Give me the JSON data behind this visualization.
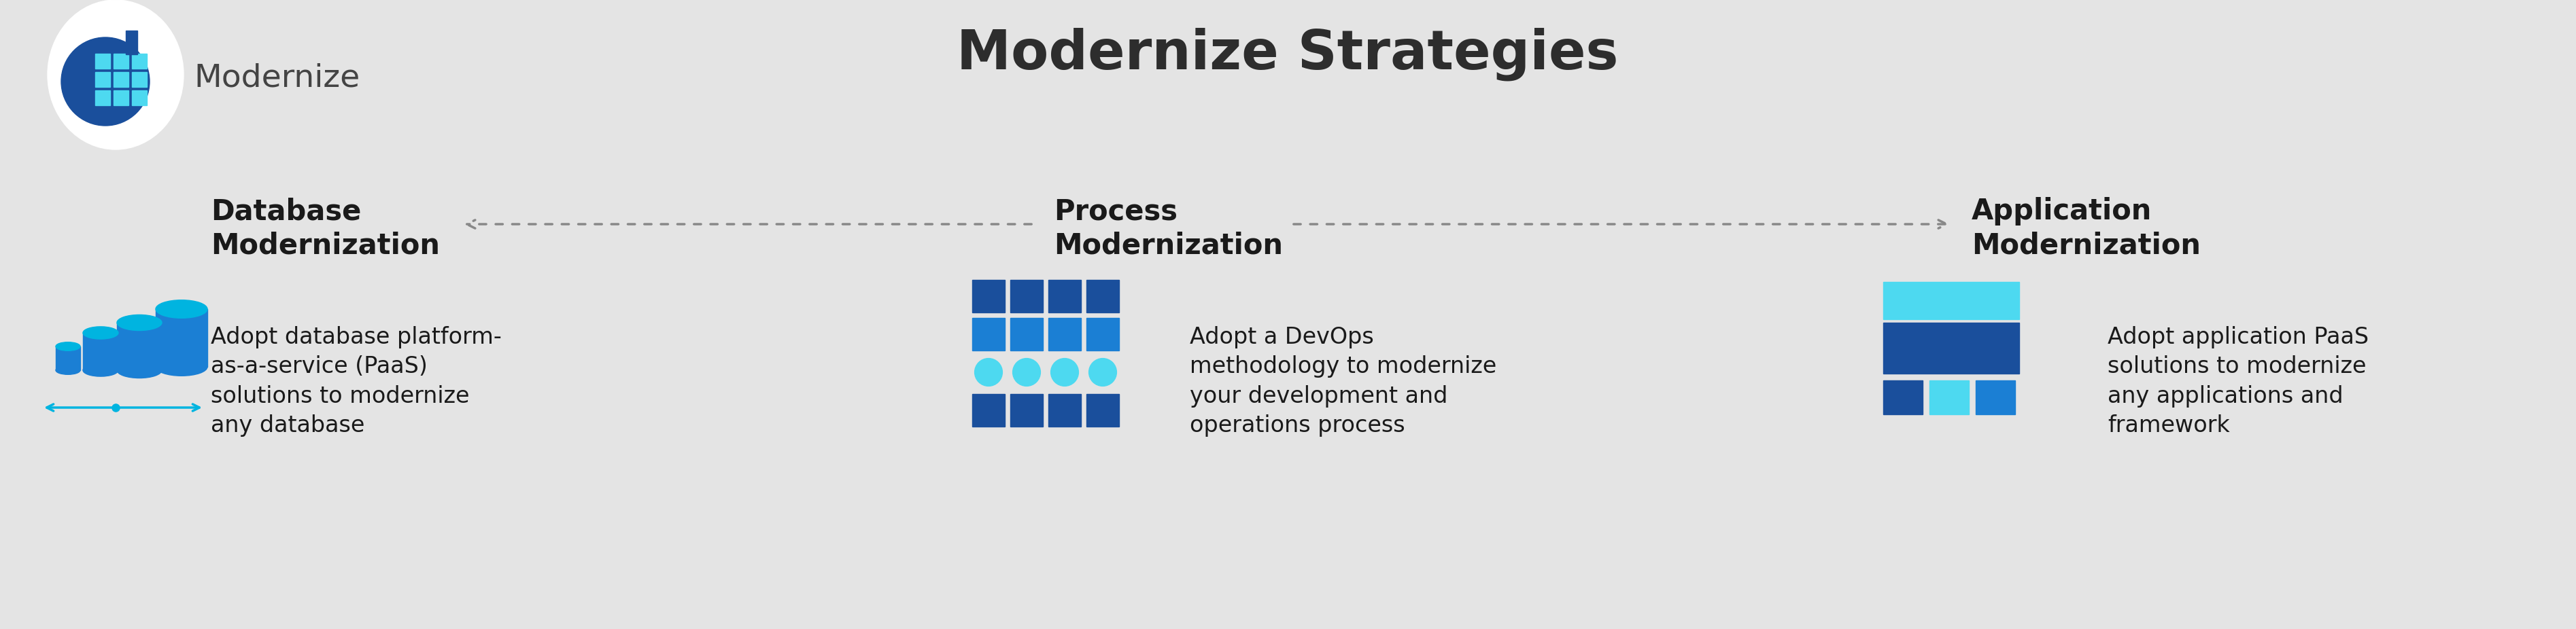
{
  "bg_color": "#e4e4e4",
  "title": "Modernize Strategies",
  "title_fontsize": 58,
  "title_color": "#2d2d2d",
  "title_fontweight": "bold",
  "logo_text": "Modernize",
  "logo_text_fontsize": 34,
  "logo_text_color": "#444444",
  "sections": [
    {
      "id": "database",
      "heading": "Database\nModernization",
      "body": "Adopt database platform-\nas-a-service (PaaS)\nsolutions to modernize\nany database"
    },
    {
      "id": "process",
      "heading": "Process\nModernization",
      "body": "Adopt a DevOps\nmethodology to modernize\nyour development and\noperations process"
    },
    {
      "id": "application",
      "heading": "Application\nModernization",
      "body": "Adopt application PaaS\nsolutions to modernize\nany applications and\nframework"
    }
  ],
  "arrow_color": "#888888",
  "text_color": "#1a1a1a",
  "heading_fontsize": 30,
  "body_fontsize": 24,
  "blue_dark": "#1a4f9c",
  "blue_mid": "#1b7fd4",
  "blue_light": "#00b4e0",
  "cyan_light": "#4dd9f0"
}
